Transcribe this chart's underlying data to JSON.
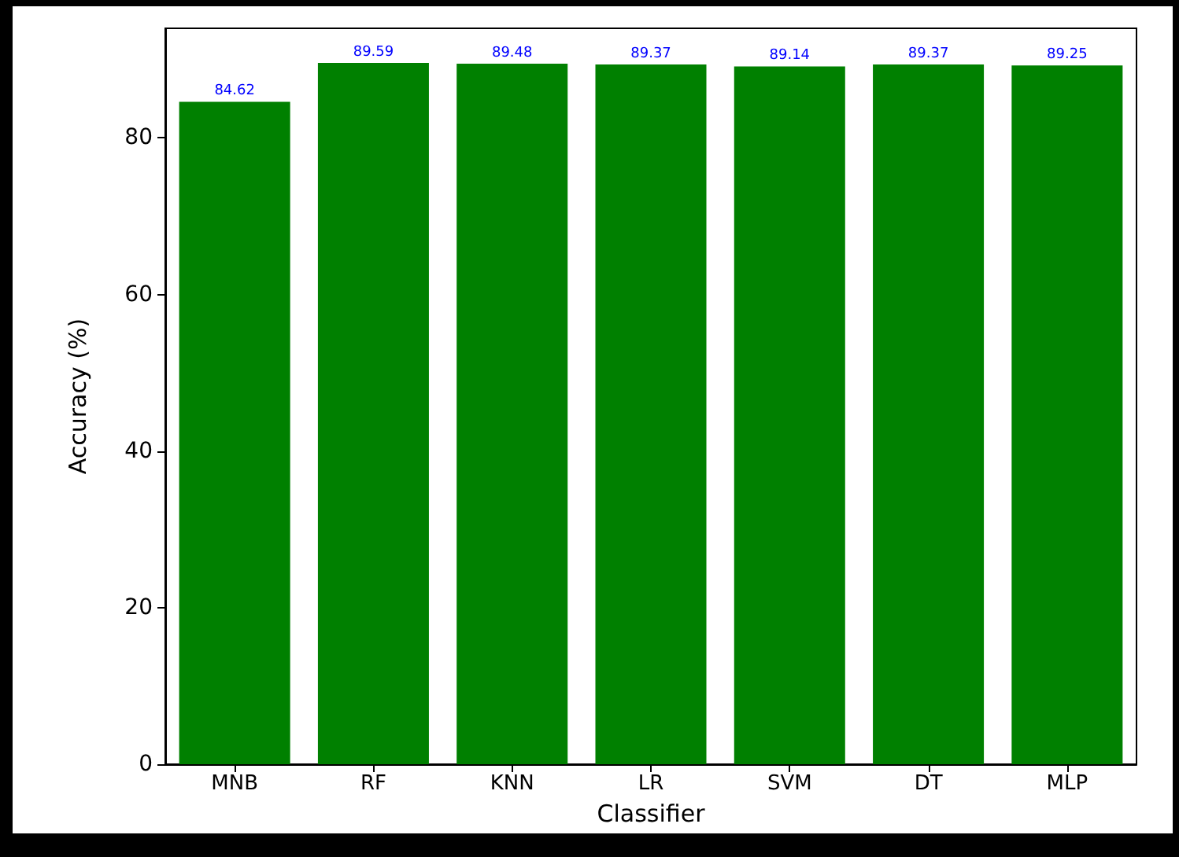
{
  "chart_data": {
    "type": "bar",
    "xlabel": "Classifier",
    "ylabel": "Accuracy (%)",
    "categories": [
      "MNB",
      "RF",
      "KNN",
      "LR",
      "SVM",
      "DT",
      "MLP"
    ],
    "values": [
      84.62,
      89.59,
      89.48,
      89.37,
      89.14,
      89.37,
      89.25
    ],
    "color": "#008000",
    "ylim": [
      0,
      94
    ],
    "yticks": [
      0,
      20,
      40,
      60,
      80
    ],
    "data_labels": true
  }
}
